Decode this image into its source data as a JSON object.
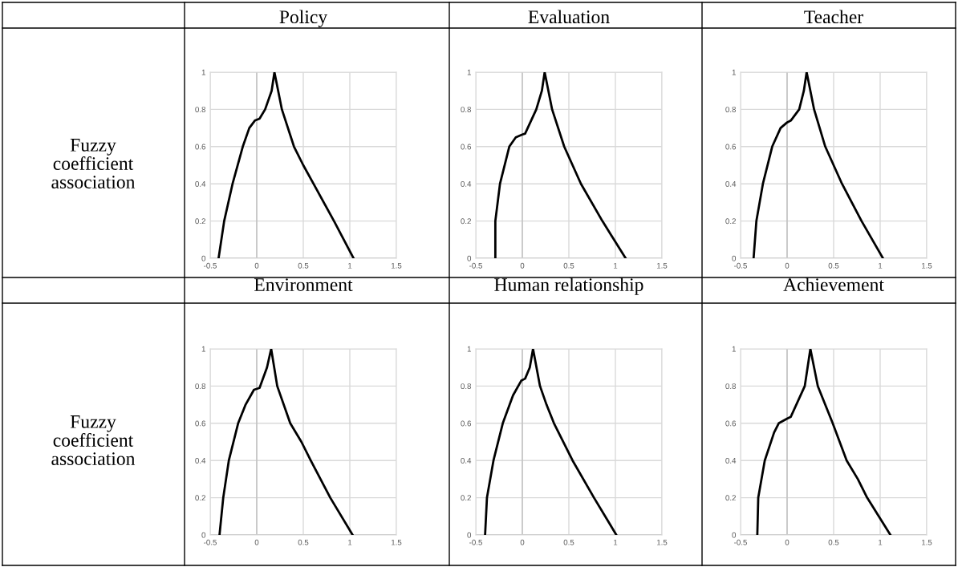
{
  "chart_data": [
    {
      "type": "line",
      "title": "Policy",
      "annotations": [
        "Fuzzy coefficient association"
      ],
      "xlim": [
        -0.5,
        1.5
      ],
      "ylim": [
        0,
        1
      ],
      "xticks": [
        -0.5,
        0,
        0.5,
        1,
        1.5
      ],
      "yticks": [
        0,
        0.2,
        0.4,
        0.6,
        0.8,
        1
      ],
      "grid": true,
      "marker": "none",
      "line_style": "solid",
      "series": [
        {
          "color": "#000000",
          "x": [
            -0.41,
            -0.35,
            -0.26,
            -0.15,
            -0.08,
            -0.02,
            0.03,
            0.09,
            0.16,
            0.19,
            0.27,
            0.4,
            0.5,
            0.61,
            0.83,
            1.04
          ],
          "values": [
            0,
            0.2,
            0.4,
            0.6,
            0.7,
            0.74,
            0.75,
            0.8,
            0.9,
            1,
            0.8,
            0.6,
            0.5,
            0.4,
            0.2,
            0
          ]
        }
      ]
    },
    {
      "type": "line",
      "title": "Evaluation",
      "xlim": [
        -0.5,
        1.5
      ],
      "ylim": [
        0,
        1
      ],
      "xticks": [
        -0.5,
        0,
        0.5,
        1,
        1.5
      ],
      "yticks": [
        0,
        0.2,
        0.4,
        0.6,
        0.8,
        1
      ],
      "grid": true,
      "marker": "none",
      "line_style": "solid",
      "series": [
        {
          "color": "#000000",
          "x": [
            -0.29,
            -0.29,
            -0.24,
            -0.14,
            -0.07,
            0,
            0.03,
            0.15,
            0.21,
            0.24,
            0.32,
            0.45,
            0.63,
            0.86,
            1.11
          ],
          "values": [
            0,
            0.2,
            0.4,
            0.6,
            0.65,
            0.665,
            0.67,
            0.8,
            0.9,
            1,
            0.8,
            0.6,
            0.4,
            0.2,
            0
          ]
        }
      ]
    },
    {
      "type": "line",
      "title": "Teacher",
      "xlim": [
        -0.5,
        1.5
      ],
      "ylim": [
        0,
        1
      ],
      "xticks": [
        -0.5,
        0,
        0.5,
        1,
        1.5
      ],
      "yticks": [
        0,
        0.2,
        0.4,
        0.6,
        0.8,
        1
      ],
      "grid": true,
      "marker": "none",
      "line_style": "solid",
      "series": [
        {
          "color": "#000000",
          "x": [
            -0.36,
            -0.33,
            -0.26,
            -0.16,
            -0.07,
            0,
            0.04,
            0.13,
            0.18,
            0.21,
            0.29,
            0.41,
            0.59,
            0.8,
            1.03
          ],
          "values": [
            0,
            0.2,
            0.4,
            0.6,
            0.7,
            0.73,
            0.74,
            0.8,
            0.9,
            1,
            0.8,
            0.6,
            0.4,
            0.2,
            0
          ]
        }
      ]
    },
    {
      "type": "line",
      "title": "Environment",
      "annotations": [
        "Fuzzy coefficient association"
      ],
      "xlim": [
        -0.5,
        1.5
      ],
      "ylim": [
        0,
        1
      ],
      "xticks": [
        -0.5,
        0,
        0.5,
        1,
        1.5
      ],
      "yticks": [
        0,
        0.2,
        0.4,
        0.6,
        0.8,
        1
      ],
      "grid": true,
      "marker": "none",
      "line_style": "solid",
      "series": [
        {
          "color": "#000000",
          "x": [
            -0.4,
            -0.36,
            -0.3,
            -0.2,
            -0.12,
            -0.03,
            0.03,
            0.11,
            0.155,
            0.22,
            0.36,
            0.48,
            0.58,
            0.79,
            1.03
          ],
          "values": [
            0,
            0.2,
            0.4,
            0.6,
            0.7,
            0.78,
            0.79,
            0.9,
            1,
            0.8,
            0.6,
            0.5,
            0.4,
            0.2,
            0
          ]
        }
      ]
    },
    {
      "type": "line",
      "title": "Human relationship",
      "xlim": [
        -0.5,
        1.5
      ],
      "ylim": [
        0,
        1
      ],
      "xticks": [
        -0.5,
        0,
        0.5,
        1,
        1.5
      ],
      "yticks": [
        0,
        0.2,
        0.4,
        0.6,
        0.8,
        1
      ],
      "grid": true,
      "marker": "none",
      "line_style": "solid",
      "series": [
        {
          "color": "#000000",
          "x": [
            -0.4,
            -0.38,
            -0.31,
            -0.21,
            -0.1,
            -0.01,
            0.03,
            0.08,
            0.115,
            0.19,
            0.26,
            0.34,
            0.54,
            0.77,
            1.01
          ],
          "values": [
            0,
            0.2,
            0.4,
            0.6,
            0.75,
            0.83,
            0.84,
            0.9,
            1,
            0.8,
            0.7,
            0.6,
            0.4,
            0.2,
            0
          ]
        }
      ]
    },
    {
      "type": "line",
      "title": "Achievement",
      "xlim": [
        -0.5,
        1.5
      ],
      "ylim": [
        0,
        1
      ],
      "xticks": [
        -0.5,
        0,
        0.5,
        1,
        1.5
      ],
      "yticks": [
        0,
        0.2,
        0.4,
        0.6,
        0.8,
        1
      ],
      "grid": true,
      "marker": "none",
      "line_style": "solid",
      "series": [
        {
          "color": "#000000",
          "x": [
            -0.32,
            -0.31,
            -0.24,
            -0.14,
            -0.09,
            0,
            0.04,
            0.19,
            0.22,
            0.25,
            0.33,
            0.49,
            0.64,
            0.76,
            0.86,
            1.11
          ],
          "values": [
            0,
            0.2,
            0.4,
            0.55,
            0.6,
            0.625,
            0.635,
            0.8,
            0.9,
            1,
            0.8,
            0.6,
            0.4,
            0.3,
            0.2,
            0
          ]
        }
      ]
    }
  ]
}
